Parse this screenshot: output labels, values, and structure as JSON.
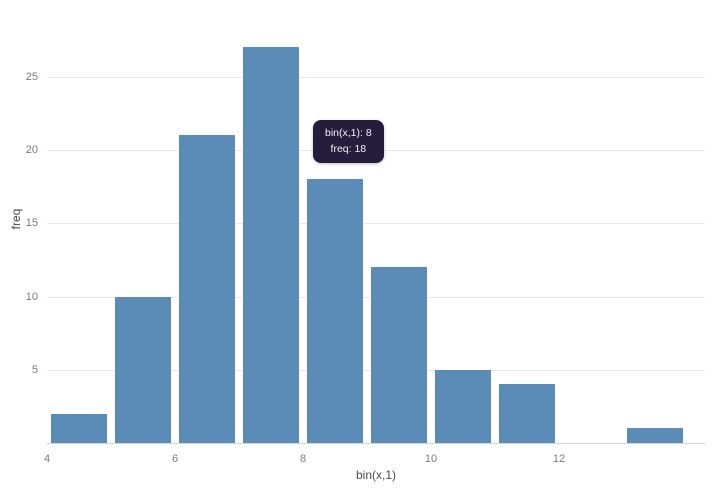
{
  "chart_data": {
    "type": "bar",
    "title": "",
    "xlabel": "bin(x,1)",
    "ylabel": "freq",
    "bins": [
      4,
      5,
      6,
      7,
      8,
      9,
      10,
      11,
      12,
      13
    ],
    "values": [
      2,
      10,
      21,
      27,
      18,
      12,
      5,
      4,
      0,
      1
    ],
    "x_ticks": [
      "4",
      "6",
      "8",
      "10",
      "12"
    ],
    "y_ticks": [
      5,
      10,
      15,
      20,
      25
    ],
    "xlim": [
      4,
      14.3
    ],
    "ylim": [
      0,
      28.4
    ],
    "grid": "horizontal-only",
    "legend": "none",
    "bar_color": "#5b8cb8",
    "grid_color": "#e9e9e9",
    "axis_line_color": "#d4d4d4",
    "tick_label_color": "#7b7b7b",
    "tooltip": {
      "bg_color": "#261d3d",
      "line1": "bin(x,1): 8",
      "line2": "freq: 18"
    }
  }
}
